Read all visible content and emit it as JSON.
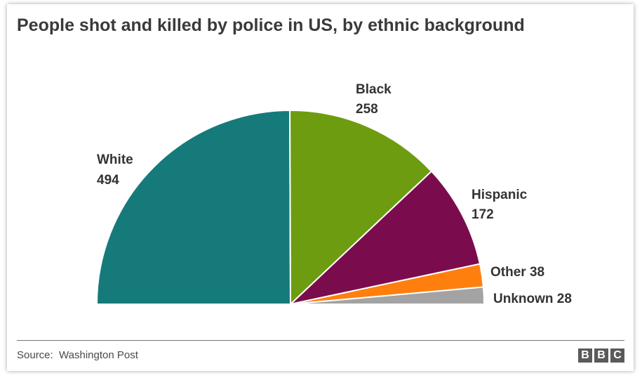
{
  "title": "People shot and killed by police in US, by ethnic background",
  "source": "Source:  Washington Post",
  "logo": [
    "B",
    "B",
    "C"
  ],
  "chart_data": {
    "type": "pie",
    "variant": "semicircle",
    "title": "People shot and killed by police in US, by ethnic background",
    "categories": [
      "White",
      "Black",
      "Hispanic",
      "Other",
      "Unknown"
    ],
    "values": [
      494,
      258,
      172,
      38,
      28
    ],
    "colors": [
      "#167a7a",
      "#6e9c10",
      "#7a0c4e",
      "#ff7f0e",
      "#a3a3a3"
    ],
    "labels": [
      {
        "name": "White",
        "value": "494"
      },
      {
        "name": "Black",
        "value": "258"
      },
      {
        "name": "Hispanic",
        "value": "172"
      },
      {
        "name": "Other",
        "value": "38"
      },
      {
        "name": "Unknown",
        "value": "28"
      }
    ]
  }
}
